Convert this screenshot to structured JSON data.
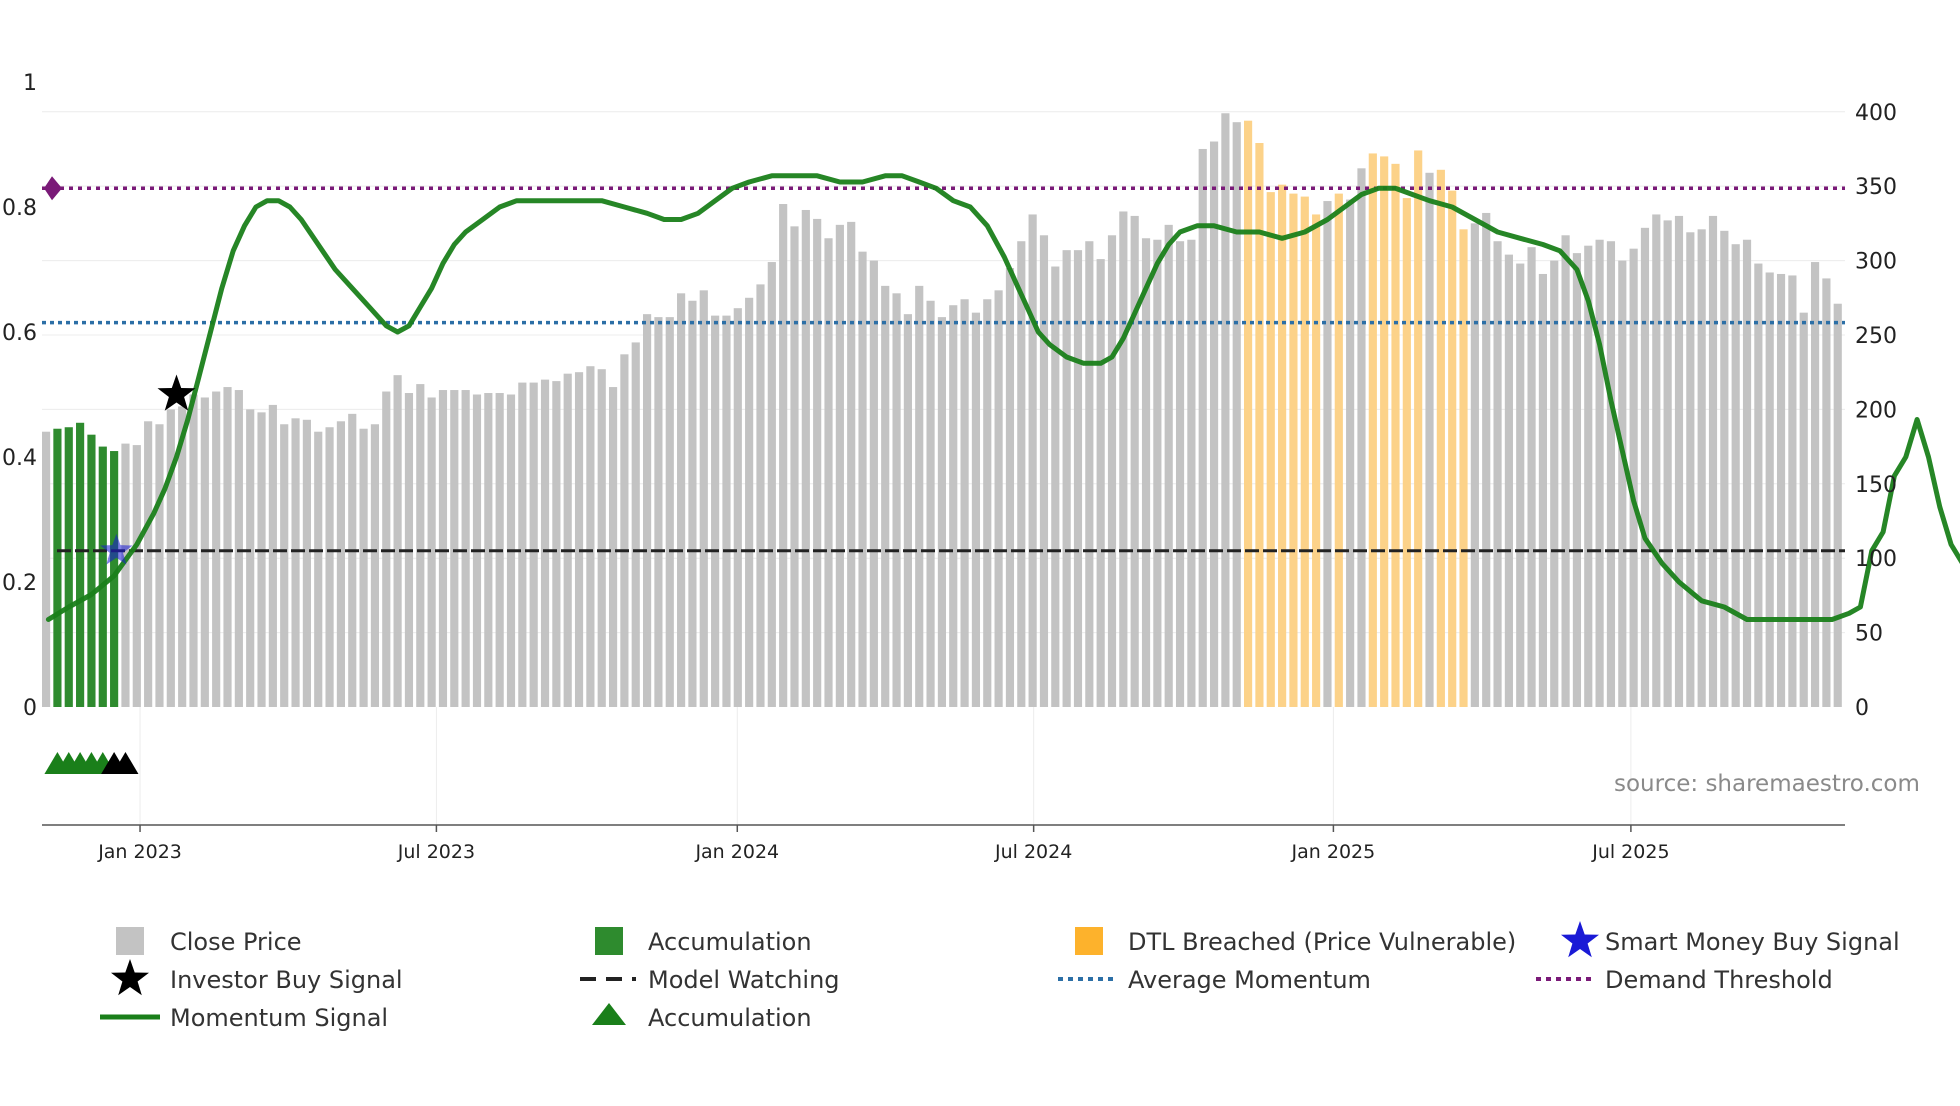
{
  "chart_data": {
    "type": "bar",
    "title": "",
    "source_note": "source: sharemaestro.com",
    "left_axis": {
      "range": [
        0,
        1
      ],
      "ticks": [
        0,
        0.2,
        0.4,
        0.6,
        0.8,
        1
      ],
      "tick_labels": [
        "0",
        "0.2",
        "0.4",
        "0.6",
        "0.8",
        "1"
      ]
    },
    "right_axis": {
      "range": [
        0,
        420
      ],
      "ticks": [
        0,
        50,
        100,
        150,
        200,
        250,
        300,
        350,
        400
      ],
      "tick_labels": [
        "0",
        "50",
        "100",
        "150",
        "200",
        "250",
        "300",
        "350",
        "400"
      ]
    },
    "x_axis": {
      "start_week": 0,
      "end_week": 160,
      "tick_weeks": [
        8.7,
        35.0,
        61.7,
        88.0,
        114.6,
        141.0
      ],
      "tick_labels": [
        "Jan 2023",
        "Jul 2023",
        "Jan 2024",
        "Jul 2024",
        "Jan 2025",
        "Jul 2025"
      ]
    },
    "close_price": [
      185,
      187,
      188,
      191,
      183,
      175,
      172,
      177,
      176,
      192,
      190,
      200,
      202,
      210,
      208,
      212,
      215,
      213,
      200,
      198,
      203,
      190,
      194,
      193,
      185,
      188,
      192,
      197,
      187,
      190,
      212,
      223,
      211,
      217,
      208,
      213,
      213,
      213,
      210,
      211,
      211,
      210,
      218,
      218,
      220,
      219,
      224,
      225,
      229,
      227,
      215,
      237,
      245,
      264,
      262,
      262,
      278,
      273,
      280,
      263,
      263,
      268,
      275,
      284,
      299,
      338,
      323,
      334,
      328,
      315,
      324,
      326,
      306,
      300,
      283,
      278,
      264,
      283,
      273,
      262,
      270,
      274,
      265,
      274,
      280,
      295,
      313,
      331,
      317,
      296,
      307,
      307,
      313,
      301,
      317,
      333,
      330,
      315,
      314,
      324,
      313,
      314,
      375,
      380,
      399,
      393,
      394,
      379,
      346,
      351,
      345,
      343,
      331,
      340,
      345,
      341,
      362,
      372,
      370,
      365,
      342,
      374,
      359,
      361,
      347,
      321,
      325,
      332,
      313,
      304,
      298,
      309,
      291,
      300,
      317,
      305,
      310,
      314,
      313,
      300,
      308,
      322,
      331,
      327,
      330,
      319,
      321,
      330,
      320,
      311,
      314,
      298,
      292,
      291,
      290,
      265,
      299,
      288,
      271
    ],
    "accumulation_weeks": [
      1,
      2,
      3,
      4,
      5,
      6
    ],
    "dtl_breached_weeks": [
      106,
      107,
      108,
      109,
      110,
      111,
      112,
      114,
      117,
      118,
      119,
      120,
      121,
      123,
      124,
      125
    ],
    "momentum_signal": [
      [
        0.2,
        0.14
      ],
      [
        2,
        0.16
      ],
      [
        4,
        0.18
      ],
      [
        6,
        0.21
      ],
      [
        8,
        0.26
      ],
      [
        9.5,
        0.31
      ],
      [
        10.5,
        0.35
      ],
      [
        11.5,
        0.4
      ],
      [
        12.5,
        0.46
      ],
      [
        13.5,
        0.53
      ],
      [
        14.5,
        0.6
      ],
      [
        15.5,
        0.67
      ],
      [
        16.5,
        0.73
      ],
      [
        17.5,
        0.77
      ],
      [
        18.5,
        0.8
      ],
      [
        19.5,
        0.81
      ],
      [
        20.5,
        0.81
      ],
      [
        21.5,
        0.8
      ],
      [
        22.5,
        0.78
      ],
      [
        24,
        0.74
      ],
      [
        25.5,
        0.7
      ],
      [
        27,
        0.67
      ],
      [
        28.5,
        0.64
      ],
      [
        30,
        0.61
      ],
      [
        31,
        0.6
      ],
      [
        32,
        0.61
      ],
      [
        33,
        0.64
      ],
      [
        34,
        0.67
      ],
      [
        35,
        0.71
      ],
      [
        36,
        0.74
      ],
      [
        37,
        0.76
      ],
      [
        38.5,
        0.78
      ],
      [
        40,
        0.8
      ],
      [
        41.5,
        0.81
      ],
      [
        43,
        0.81
      ],
      [
        45,
        0.81
      ],
      [
        47,
        0.81
      ],
      [
        49,
        0.81
      ],
      [
        51,
        0.8
      ],
      [
        53,
        0.79
      ],
      [
        54.5,
        0.78
      ],
      [
        56,
        0.78
      ],
      [
        57.5,
        0.79
      ],
      [
        59,
        0.81
      ],
      [
        60.5,
        0.83
      ],
      [
        62,
        0.84
      ],
      [
        64,
        0.85
      ],
      [
        66,
        0.85
      ],
      [
        68,
        0.85
      ],
      [
        70,
        0.84
      ],
      [
        72,
        0.84
      ],
      [
        74,
        0.85
      ],
      [
        75.5,
        0.85
      ],
      [
        77,
        0.84
      ],
      [
        78.5,
        0.83
      ],
      [
        80,
        0.81
      ],
      [
        81.5,
        0.8
      ],
      [
        83,
        0.77
      ],
      [
        84.5,
        0.72
      ],
      [
        85.5,
        0.68
      ],
      [
        86.5,
        0.64
      ],
      [
        87.5,
        0.6
      ],
      [
        88.5,
        0.58
      ],
      [
        90,
        0.56
      ],
      [
        91.5,
        0.55
      ],
      [
        93,
        0.55
      ],
      [
        94,
        0.56
      ],
      [
        95,
        0.59
      ],
      [
        96,
        0.63
      ],
      [
        97,
        0.67
      ],
      [
        98,
        0.71
      ],
      [
        99,
        0.74
      ],
      [
        100,
        0.76
      ],
      [
        101.5,
        0.77
      ],
      [
        103,
        0.77
      ],
      [
        105,
        0.76
      ],
      [
        107,
        0.76
      ],
      [
        109,
        0.75
      ],
      [
        111,
        0.76
      ],
      [
        113,
        0.78
      ],
      [
        114.5,
        0.8
      ],
      [
        116,
        0.82
      ],
      [
        117.5,
        0.83
      ],
      [
        119,
        0.83
      ],
      [
        120.5,
        0.82
      ],
      [
        122,
        0.81
      ],
      [
        124,
        0.8
      ],
      [
        126,
        0.78
      ],
      [
        128,
        0.76
      ],
      [
        130,
        0.75
      ],
      [
        132,
        0.74
      ],
      [
        133.5,
        0.73
      ],
      [
        135,
        0.7
      ],
      [
        136,
        0.65
      ],
      [
        137,
        0.58
      ],
      [
        138,
        0.49
      ],
      [
        139,
        0.41
      ],
      [
        140,
        0.33
      ],
      [
        141,
        0.27
      ],
      [
        142.5,
        0.23
      ],
      [
        144,
        0.2
      ],
      [
        146,
        0.17
      ],
      [
        148,
        0.16
      ],
      [
        150,
        0.14
      ],
      [
        152,
        0.14
      ],
      [
        154,
        0.14
      ],
      [
        156,
        0.14
      ],
      [
        157.5,
        0.14
      ],
      [
        159,
        0.15
      ],
      [
        160,
        0.16
      ],
      [
        161,
        0.25
      ],
      [
        162,
        0.28
      ],
      [
        163,
        0.37
      ],
      [
        164,
        0.4
      ],
      [
        165,
        0.46
      ],
      [
        166,
        0.4
      ],
      [
        167,
        0.32
      ],
      [
        168,
        0.26
      ],
      [
        169,
        0.23
      ]
    ],
    "average_momentum": 0.615,
    "demand_threshold": 0.83,
    "model_watching_level": 0.25,
    "investor_buy_signal": {
      "week": 11.5,
      "value": 0.5
    },
    "smart_money_buy_signal": {
      "week": 6.2,
      "value": 0.25
    },
    "accumulation_markers": [
      1,
      2,
      3,
      4,
      5
    ],
    "model_watching_markers": [
      6,
      7
    ],
    "legend": {
      "close_price": "Close Price",
      "accumulation_bar": "Accumulation",
      "dtl_breached": "DTL Breached (Price Vulnerable)",
      "smart_money": "Smart Money Buy Signal",
      "investor_buy": "Investor Buy Signal",
      "model_watching": "Model Watching",
      "average_momentum": "Average Momentum",
      "demand_threshold": "Demand Threshold",
      "momentum_signal": "Momentum Signal",
      "accumulation_marker": "Accumulation"
    },
    "colors": {
      "close_price": "#c3c3c3",
      "accumulation_bar": "#2e8b2e",
      "dtl_breached": "#fcd289",
      "dtl_legend": "#fdb22c",
      "momentum": "#1a7f1a",
      "average_momentum": "#2c6fa6",
      "demand_threshold": "#7a1a78",
      "model_watching": "#222222",
      "investor_buy": "#000000",
      "smart_money": "#1a1ad6",
      "marker_green": "#1a7f1a",
      "marker_black": "#000000",
      "source": "#8a8a8a"
    }
  }
}
